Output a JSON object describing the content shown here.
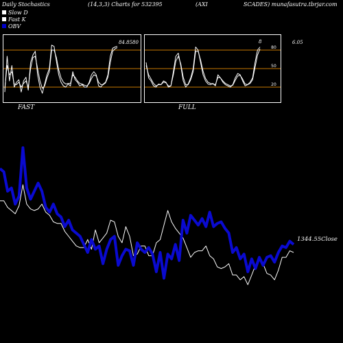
{
  "header": {
    "left": "Daily Stochastics",
    "params": "(14,3,3) Charts for 532395",
    "symbol": "(AXI",
    "right": "SCADES) munafasutra.tbrjar.com"
  },
  "legend": [
    {
      "label": "Slow  D",
      "color": "#ffffff"
    },
    {
      "label": "Fast K",
      "color": "#ffffff"
    },
    {
      "label": "OBV",
      "color": "#0000cc"
    }
  ],
  "colors": {
    "obv": "#0a0ad0",
    "price": "#ffffff",
    "band": "#c87800",
    "stoch": "#ffffff"
  },
  "chart_data": [
    {
      "type": "line",
      "name": "fast",
      "label": "FAST",
      "ylim": [
        0,
        100
      ],
      "bands": [
        20,
        50,
        80
      ],
      "last_value_label": "84.8580",
      "series": [
        {
          "values": [
            12,
            70,
            30,
            55,
            20,
            28,
            32,
            12,
            30,
            36,
            15,
            60,
            72,
            78,
            40,
            20,
            10,
            25,
            40,
            50,
            88,
            86,
            62,
            40,
            28,
            22,
            20,
            25,
            22,
            45,
            32,
            28,
            22,
            24,
            20,
            20,
            28,
            40,
            45,
            40,
            22,
            20,
            25,
            28,
            40,
            70,
            83,
            85,
            86
          ]
        },
        {
          "values": [
            18,
            55,
            40,
            45,
            25,
            24,
            28,
            20,
            26,
            30,
            20,
            50,
            68,
            70,
            50,
            30,
            18,
            22,
            35,
            45,
            80,
            80,
            68,
            48,
            35,
            28,
            25,
            26,
            26,
            40,
            36,
            30,
            26,
            25,
            23,
            22,
            26,
            34,
            40,
            38,
            28,
            24,
            24,
            27,
            36,
            60,
            78,
            82,
            84
          ]
        }
      ]
    },
    {
      "type": "line",
      "name": "full",
      "label": "FULL",
      "ylim": [
        0,
        100
      ],
      "bands": [
        20,
        50,
        80
      ],
      "ticks": [
        80,
        50,
        20
      ],
      "last_value_label": "8",
      "series": [
        {
          "values": [
            60,
            35,
            30,
            22,
            20,
            25,
            24,
            30,
            28,
            20,
            22,
            45,
            70,
            75,
            55,
            30,
            20,
            25,
            35,
            50,
            85,
            80,
            60,
            40,
            30,
            25,
            24,
            26,
            22,
            40,
            35,
            28,
            24,
            22,
            20,
            24,
            35,
            42,
            40,
            30,
            22,
            24,
            28,
            35,
            60,
            80,
            85
          ]
        },
        {
          "values": [
            55,
            40,
            33,
            26,
            22,
            24,
            24,
            28,
            27,
            22,
            22,
            40,
            62,
            70,
            58,
            36,
            24,
            24,
            32,
            45,
            78,
            78,
            64,
            46,
            34,
            28,
            26,
            25,
            24,
            36,
            35,
            30,
            26,
            24,
            22,
            23,
            31,
            38,
            39,
            33,
            25,
            24,
            26,
            32,
            52,
            72,
            82
          ]
        }
      ]
    },
    {
      "type": "line",
      "name": "price-obv",
      "ylim": [
        0,
        100
      ],
      "last_value_label": "1344.55",
      "close_label": "Close",
      "side_value": "6.05",
      "series": [
        {
          "name": "OBV",
          "values": [
            72,
            70,
            58,
            60,
            50,
            55,
            85,
            60,
            53,
            58,
            63,
            58,
            48,
            45,
            50,
            44,
            42,
            36,
            40,
            34,
            32,
            30,
            25,
            20,
            28,
            22,
            24,
            13,
            22,
            28,
            30,
            12,
            18,
            22,
            21,
            12,
            26,
            22,
            20,
            23,
            19,
            8,
            20,
            4,
            19,
            16,
            25,
            15,
            40,
            32,
            43,
            40,
            37,
            41,
            36,
            45,
            36,
            38,
            39,
            35,
            32,
            20,
            23,
            16,
            19,
            8,
            16,
            10,
            17,
            12,
            17,
            18,
            14,
            20,
            24,
            23,
            27,
            25
          ]
        },
        {
          "name": "Close",
          "values": [
            52,
            52,
            48,
            46,
            44,
            49,
            62,
            50,
            47,
            46,
            47,
            50,
            45,
            43,
            39,
            38,
            38,
            33,
            30,
            27,
            24,
            23,
            23,
            28,
            22,
            34,
            26,
            29,
            32,
            40,
            39,
            30,
            26,
            36,
            30,
            18,
            19,
            24,
            24,
            18,
            18,
            26,
            28,
            37,
            46,
            39,
            35,
            32,
            29,
            23,
            17,
            20,
            21,
            21,
            24,
            18,
            16,
            11,
            10,
            11,
            13,
            6,
            6,
            3,
            5,
            0,
            6,
            12,
            15,
            13,
            7,
            6,
            3,
            9,
            17,
            17,
            21,
            20
          ]
        }
      ]
    }
  ]
}
